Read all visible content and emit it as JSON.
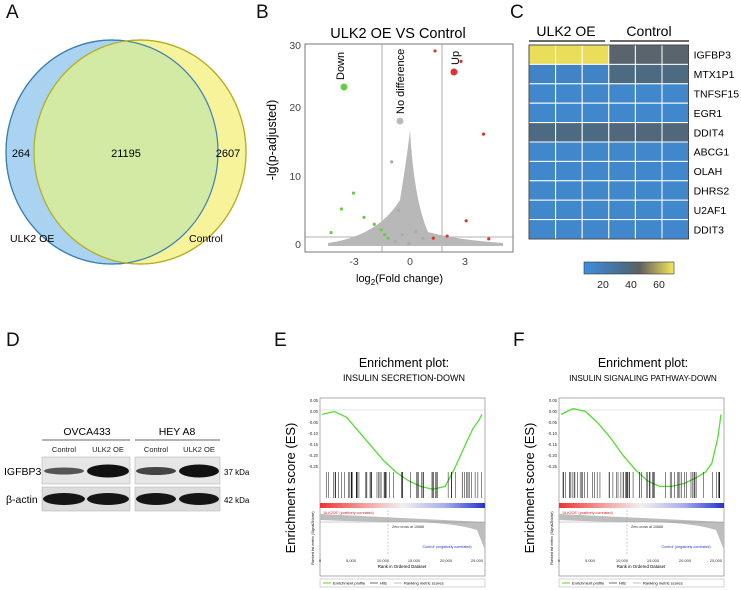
{
  "panels": {
    "A": {
      "letter": "A",
      "venn": {
        "left_label": "ULK2 OE",
        "right_label": "Control",
        "left_only": "264",
        "overlap": "21195",
        "right_only": "2607",
        "left_color": "#a9d3f0",
        "right_color": "#f7f39a",
        "overlap_color": "#d2eaa4"
      }
    },
    "B": {
      "letter": "B",
      "title": "ULK2 OE VS Control",
      "ylabel": "-lg(p-adjusted)",
      "xlabel_main": "log",
      "xlabel_sub": "2",
      "xlabel_rest": "(Fold change)",
      "x_ticks": [
        "-3",
        "0",
        "3"
      ],
      "y_ticks": [
        "0",
        "10",
        "20",
        "30"
      ],
      "legend": {
        "down": "Down",
        "nodiff": "No difference",
        "up": "Up"
      }
    },
    "C": {
      "letter": "C",
      "group_left": "ULK2 OE",
      "group_right": "Control",
      "genes": [
        "IGFBP3",
        "MTX1P1",
        "TNFSF15",
        "EGR1",
        "DDIT4",
        "ABCG1",
        "OLAH",
        "DHRS2",
        "U2AF1",
        "DDIT3"
      ],
      "colorbar_ticks": [
        "20",
        "40",
        "60"
      ]
    },
    "D": {
      "letter": "D",
      "cell_lines": [
        "OVCA433",
        "HEY A8"
      ],
      "lane_labels": [
        "Control",
        "ULK2 OE",
        "Control",
        "ULK2 OE"
      ],
      "proteins": [
        "IGFBP3",
        "β-actin"
      ],
      "sizes": [
        "37 kDa",
        "42 kDa"
      ]
    },
    "E": {
      "letter": "E",
      "title": "Enrichment plot:",
      "subtitle": "INSULIN SECRETION-DOWN",
      "ylabel": "Enrichment score (ES)",
      "es_ticks": [
        "0.05",
        "0.00",
        "-0.05",
        "-0.10",
        "-0.15",
        "-0.20",
        "-0.25"
      ],
      "rank_ylabel": "Ranked list metric (Signal2Noise)",
      "pos_label": "'ULK2OE' (positively correlated)",
      "neg_label": "'Control' (negatively correlated)",
      "zero_cross": "Zero cross at 10688",
      "x_ticks": [
        "0",
        "5,000",
        "10,000",
        "15,000",
        "20,000",
        "25,000"
      ],
      "xlabel": "Rank in Ordered Dataset",
      "legend_profile": "Enrichment profile",
      "legend_hits": "Hits",
      "legend_ranking": "Ranking metric scores"
    },
    "F": {
      "letter": "F",
      "title": "Enrichment plot:",
      "subtitle": "INSULIN SIGNALING PATHWAY-DOWN",
      "ylabel": "Enrichment score (ES)",
      "es_ticks": [
        "0.05",
        "0.00",
        "-0.05",
        "-0.10",
        "-0.15",
        "-0.20",
        "-0.25"
      ],
      "rank_ylabel": "Ranked list metric (Signal2Noise)",
      "pos_label": "'ULK2OE' (positively correlated)",
      "neg_label": "'Control' (negatively correlated)",
      "zero_cross": "Zero cross at 10688",
      "x_ticks": [
        "0",
        "5,000",
        "10,000",
        "15,000",
        "20,000",
        "25,000"
      ],
      "xlabel": "Rank in Ordered Dataset",
      "legend_profile": "Enrichment profile",
      "legend_hits": "Hits",
      "legend_ranking": "Ranking metric scores"
    }
  },
  "chart_data": [
    {
      "type": "scatter",
      "title": "ULK2 OE VS Control",
      "xlabel": "log 2(Fold change)",
      "ylabel": "-lg(p-adjusted)",
      "xlim": [
        -6,
        6
      ],
      "ylim": [
        0,
        30
      ],
      "series": [
        {
          "name": "Down",
          "color": "#66cc44",
          "points": [
            [
              -4.5,
              2.8
            ],
            [
              -3.9,
              6.2
            ],
            [
              -3.2,
              8.5
            ],
            [
              -2.6,
              5.0
            ],
            [
              -2.0,
              4.0
            ],
            [
              -1.6,
              3.2
            ],
            [
              -1.4,
              2.5
            ],
            [
              -1.2,
              2.0
            ]
          ]
        },
        {
          "name": "No difference",
          "color": "#aaaaaa",
          "points": [
            [
              -0.8,
              1.5
            ],
            [
              -0.4,
              2.5
            ],
            [
              0,
              1.2
            ],
            [
              0.4,
              3.0
            ],
            [
              0.8,
              2.0
            ],
            [
              -1.0,
              13.0
            ],
            [
              -0.6,
              6.0
            ]
          ]
        },
        {
          "name": "Up",
          "color": "#e03030",
          "points": [
            [
              1.5,
              29.0
            ],
            [
              3.0,
              27.5
            ],
            [
              4.3,
              17.0
            ],
            [
              3.3,
              4.5
            ],
            [
              1.4,
              2.0
            ],
            [
              2.2,
              2.3
            ],
            [
              4.6,
              1.9
            ]
          ]
        }
      ]
    },
    {
      "type": "heatmap",
      "rows": [
        "IGFBP3",
        "MTX1P1",
        "TNFSF15",
        "EGR1",
        "DDIT4",
        "ABCG1",
        "OLAH",
        "DHRS2",
        "U2AF1",
        "DDIT3"
      ],
      "columns": [
        "ULK2 OE",
        "ULK2 OE",
        "ULK2 OE",
        "Control",
        "Control",
        "Control"
      ],
      "values": [
        [
          68,
          68,
          68,
          42,
          42,
          42
        ],
        [
          14,
          14,
          14,
          36,
          36,
          36
        ],
        [
          12,
          12,
          12,
          12,
          12,
          12
        ],
        [
          12,
          12,
          12,
          12,
          12,
          12
        ],
        [
          36,
          36,
          36,
          38,
          38,
          38
        ],
        [
          12,
          12,
          12,
          12,
          12,
          12
        ],
        [
          12,
          12,
          12,
          12,
          12,
          12
        ],
        [
          12,
          12,
          12,
          12,
          12,
          12
        ],
        [
          12,
          12,
          12,
          12,
          12,
          12
        ],
        [
          12,
          12,
          12,
          12,
          12,
          12
        ]
      ],
      "colorbar_range": [
        5,
        70
      ]
    },
    {
      "type": "line",
      "title": "Enrichment plot:",
      "subtitle": "INSULIN SECRETION-DOWN",
      "xlabel": "Rank in Ordered Dataset",
      "ylabel": "Enrichment score (ES)",
      "xlim": [
        0,
        26000
      ],
      "ylim": [
        -0.28,
        0.05
      ],
      "x": [
        0,
        2000,
        4000,
        6000,
        8000,
        10000,
        12000,
        14000,
        16000,
        18000,
        20000,
        21500,
        23000,
        24500,
        25500,
        26000
      ],
      "values": [
        0.0,
        0.01,
        -0.01,
        -0.06,
        -0.11,
        -0.16,
        -0.2,
        -0.23,
        -0.25,
        -0.26,
        -0.25,
        -0.19,
        -0.12,
        -0.05,
        -0.02,
        0.0
      ]
    },
    {
      "type": "line",
      "title": "Enrichment plot:",
      "subtitle": "INSULIN SIGNALING PATHWAY-DOWN",
      "xlabel": "Rank in Ordered Dataset",
      "ylabel": "Enrichment score (ES)",
      "xlim": [
        0,
        26000
      ],
      "ylim": [
        -0.28,
        0.05
      ],
      "x": [
        0,
        2000,
        4000,
        6000,
        8000,
        10000,
        12000,
        14000,
        16000,
        18000,
        20000,
        22000,
        23500,
        24500,
        25500,
        26000
      ],
      "values": [
        0.0,
        0.02,
        0.01,
        -0.03,
        -0.08,
        -0.14,
        -0.19,
        -0.23,
        -0.25,
        -0.25,
        -0.24,
        -0.22,
        -0.2,
        -0.17,
        -0.08,
        0.0
      ]
    }
  ]
}
